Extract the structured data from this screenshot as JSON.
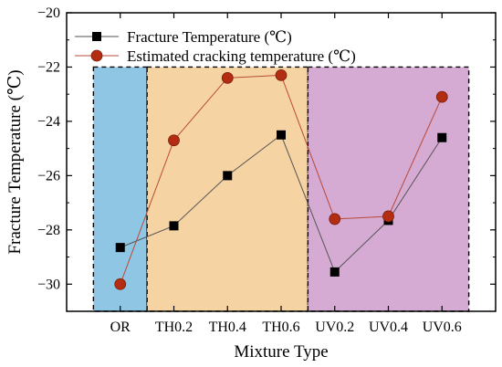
{
  "chart_data": {
    "type": "line",
    "xlabel": "Mixture Type",
    "ylabel": "Fracture Temperature (℃)",
    "categories": [
      "OR",
      "TH0.2",
      "TH0.4",
      "TH0.6",
      "UV0.2",
      "UV0.4",
      "UV0.6"
    ],
    "ylim": [
      -31,
      -20
    ],
    "yticks": [
      -30,
      -28,
      -26,
      -24,
      -22,
      -20
    ],
    "grid": false,
    "legend_position": "top-left",
    "series": [
      {
        "name": "Fracture Temperature (℃)",
        "marker": "square",
        "color": "#000000",
        "line_color": "#555555",
        "values": [
          -28.65,
          -27.85,
          -26.0,
          -24.5,
          -29.55,
          -27.65,
          -24.6
        ]
      },
      {
        "name": "Estimated  cracking temperature (℃)",
        "marker": "circle",
        "color": "#b22d12",
        "line_color": "#b84a3a",
        "values": [
          -30.0,
          -24.7,
          -22.4,
          -22.3,
          -27.6,
          -27.5,
          -23.1
        ]
      }
    ],
    "shaded_groups": [
      {
        "categories": [
          "OR"
        ],
        "color": "#8ec6e4"
      },
      {
        "categories": [
          "TH0.2",
          "TH0.4",
          "TH0.6"
        ],
        "color": "#f6d3a3"
      },
      {
        "categories": [
          "UV0.2",
          "UV0.4",
          "UV0.6"
        ],
        "color": "#d5aad3"
      }
    ]
  }
}
